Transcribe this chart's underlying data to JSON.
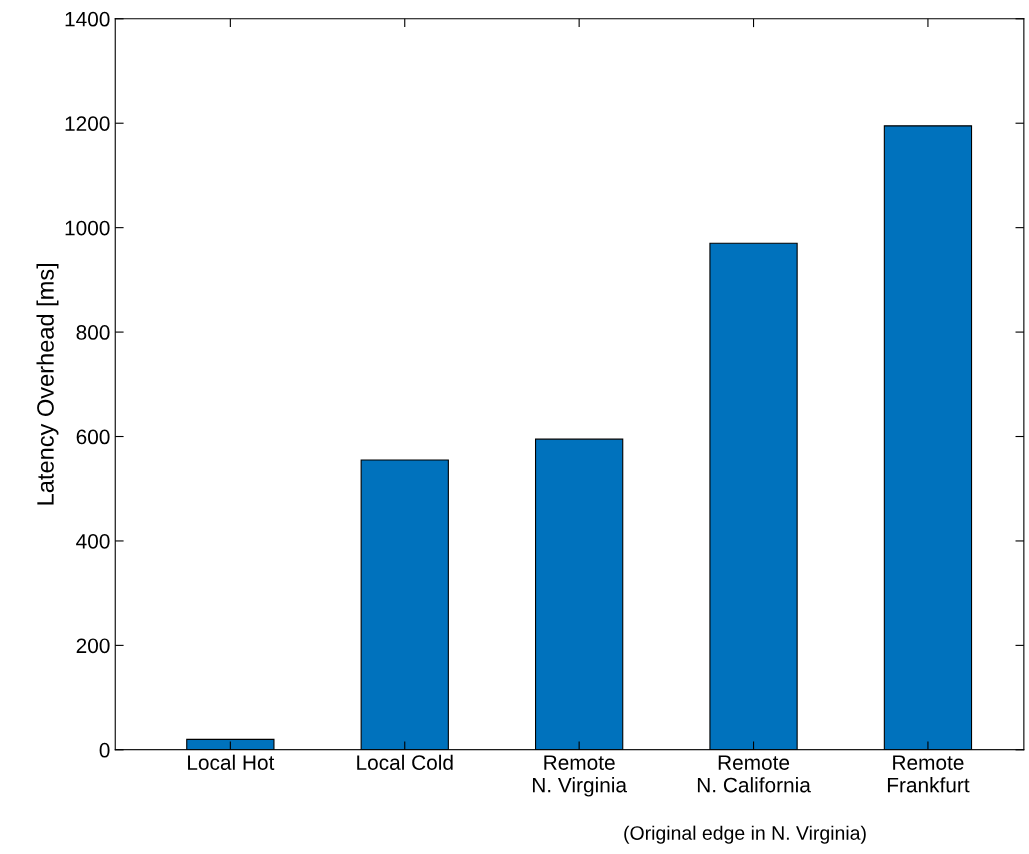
{
  "chart_data": {
    "type": "bar",
    "ylabel": "Latency Overhead [ms]",
    "categories": [
      "Local Hot",
      "Local Cold",
      "Remote\nN. Virginia",
      "Remote\nN. California",
      "Remote\nFrankfurt"
    ],
    "values": [
      20,
      555,
      595,
      970,
      1195
    ],
    "color": "#0072bd",
    "ylim": [
      0,
      1400
    ],
    "yticks": [
      0,
      200,
      400,
      600,
      800,
      1000,
      1200,
      1400
    ],
    "grid": false,
    "annotations": [
      "(Original edge in N. Virginia)"
    ]
  }
}
